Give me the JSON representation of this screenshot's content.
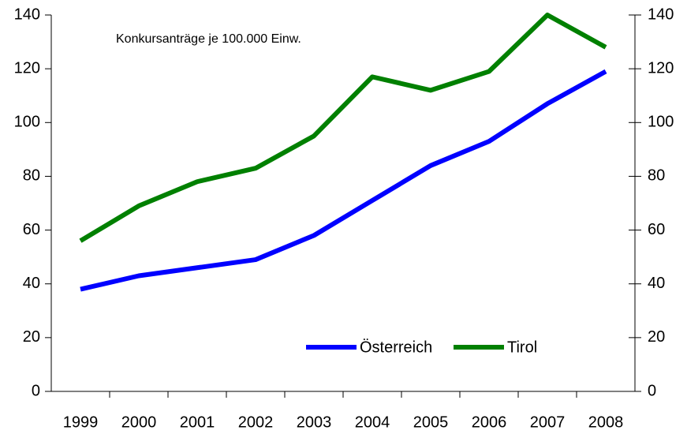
{
  "chart_data": {
    "type": "line",
    "annotation": "Konkursanträge je 100.000 Einw.",
    "categories": [
      "1999",
      "2000",
      "2001",
      "2002",
      "2003",
      "2004",
      "2005",
      "2006",
      "2007",
      "2008"
    ],
    "series": [
      {
        "name": "Österreich",
        "color": "#0000ff",
        "values": [
          38,
          43,
          46,
          49,
          58,
          71,
          84,
          93,
          107,
          119
        ]
      },
      {
        "name": "Tirol",
        "color": "#008000",
        "values": [
          56,
          69,
          78,
          83,
          95,
          117,
          112,
          119,
          140,
          128
        ]
      }
    ],
    "ylim": [
      0,
      140
    ],
    "yticks": [
      0,
      20,
      40,
      60,
      80,
      100,
      120,
      140
    ],
    "y2lim": [
      0,
      140
    ],
    "y2ticks": [
      0,
      20,
      40,
      60,
      80,
      100,
      120,
      140
    ],
    "grid": false,
    "legend": "bottom"
  }
}
